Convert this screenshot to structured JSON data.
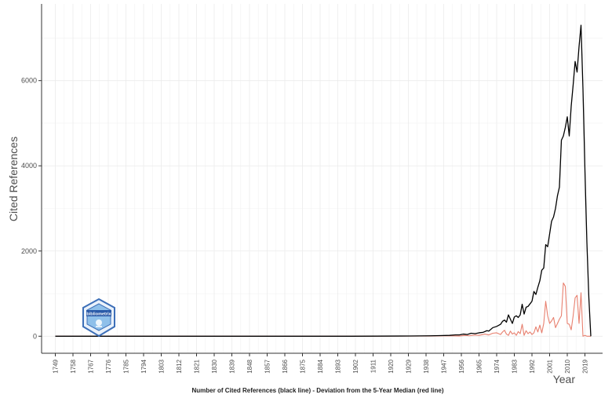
{
  "chart_data": {
    "type": "line",
    "title": "",
    "xlabel": "Number of Cited References (black line) - Deviation from the 5-Year Median (red line)",
    "ylabel": "Cited References",
    "x_axis_end_label": "Year",
    "logo_text": "bibliometrix",
    "ylim": [
      -400,
      7800
    ],
    "xlim": [
      1742,
      2028
    ],
    "y_ticks": [
      0,
      2000,
      4000,
      6000
    ],
    "x_ticks": [
      1749,
      1758,
      1767,
      1776,
      1785,
      1794,
      1803,
      1812,
      1821,
      1830,
      1839,
      1848,
      1857,
      1866,
      1875,
      1884,
      1893,
      1902,
      1911,
      1920,
      1929,
      1938,
      1947,
      1956,
      1965,
      1974,
      1983,
      1992,
      2001,
      2010,
      2019
    ],
    "grid": true,
    "series": [
      {
        "name": "",
        "color": "#000000",
        "x": [
          1749,
          1800,
          1850,
          1900,
          1930,
          1940,
          1945,
          1950,
          1953,
          1955,
          1957,
          1959,
          1961,
          1963,
          1965,
          1967,
          1969,
          1970,
          1972,
          1974,
          1976,
          1977,
          1978,
          1979,
          1980,
          1981,
          1982,
          1983,
          1984,
          1985,
          1986,
          1987,
          1988,
          1989,
          1990,
          1991,
          1992,
          1993,
          1994,
          1995,
          1996,
          1997,
          1998,
          1999,
          2000,
          2001,
          2002,
          2003,
          2004,
          2005,
          2006,
          2007,
          2008,
          2009,
          2010,
          2011,
          2012,
          2013,
          2014,
          2015,
          2016,
          2017,
          2018,
          2019,
          2020,
          2021,
          2022
        ],
        "y": [
          0,
          0,
          0,
          0,
          5,
          10,
          15,
          20,
          30,
          30,
          50,
          40,
          70,
          60,
          80,
          90,
          130,
          120,
          200,
          230,
          280,
          350,
          380,
          330,
          500,
          400,
          300,
          450,
          480,
          440,
          500,
          750,
          520,
          680,
          700,
          760,
          820,
          1050,
          980,
          1150,
          1300,
          1550,
          1600,
          2150,
          2100,
          2400,
          2700,
          2800,
          3000,
          3300,
          3500,
          4600,
          4700,
          4900,
          5150,
          4700,
          5400,
          5900,
          6450,
          6200,
          6800,
          7300,
          5800,
          3900,
          2200,
          900,
          0
        ]
      },
      {
        "name": "",
        "color": "#e8806f",
        "x": [
          1749,
          1800,
          1850,
          1900,
          1940,
          1950,
          1955,
          1958,
          1960,
          1963,
          1965,
          1968,
          1970,
          1972,
          1974,
          1976,
          1977,
          1978,
          1979,
          1980,
          1981,
          1982,
          1983,
          1984,
          1985,
          1986,
          1987,
          1988,
          1989,
          1990,
          1991,
          1992,
          1993,
          1994,
          1995,
          1996,
          1997,
          1998,
          1999,
          2000,
          2001,
          2002,
          2003,
          2004,
          2005,
          2006,
          2007,
          2008,
          2009,
          2010,
          2011,
          2012,
          2013,
          2014,
          2015,
          2016,
          2017,
          2018,
          2019,
          2020,
          2021,
          2022
        ],
        "y": [
          0,
          0,
          0,
          0,
          5,
          10,
          5,
          20,
          10,
          30,
          20,
          50,
          30,
          70,
          80,
          40,
          100,
          140,
          50,
          20,
          120,
          50,
          80,
          20,
          110,
          60,
          280,
          20,
          130,
          60,
          100,
          40,
          80,
          220,
          100,
          260,
          80,
          300,
          820,
          480,
          300,
          360,
          440,
          200,
          300,
          400,
          480,
          1250,
          1170,
          300,
          280,
          150,
          480,
          900,
          960,
          300,
          1020,
          0,
          20,
          0,
          0,
          0
        ]
      }
    ]
  }
}
